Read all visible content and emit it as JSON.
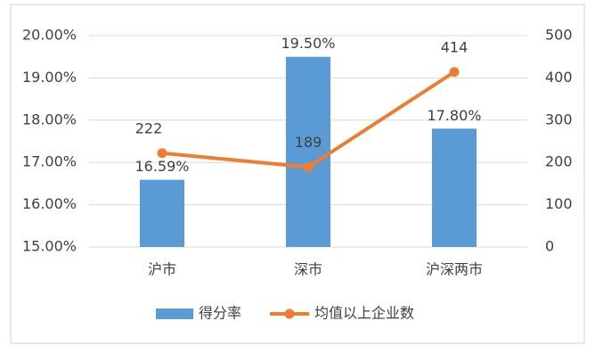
{
  "chart_data": {
    "type": "combo",
    "categories": [
      "沪市",
      "深市",
      "沪深两市"
    ],
    "series": [
      {
        "name": "得分率",
        "type": "bar",
        "color": "#5b9bd5",
        "values": [
          16.59,
          19.5,
          17.8
        ],
        "value_labels": [
          "16.59%",
          "19.50%",
          "17.80%"
        ]
      },
      {
        "name": "均值以上企业数",
        "type": "line",
        "axis": "y2",
        "color": "#ed7d31",
        "values": [
          222,
          189,
          414
        ]
      }
    ],
    "ylim": [
      15,
      20
    ],
    "yticks": [
      {
        "value": 15,
        "label": "15.00%"
      },
      {
        "value": 16,
        "label": "16.00%"
      },
      {
        "value": 17,
        "label": "17.00%"
      },
      {
        "value": 18,
        "label": "18.00%"
      },
      {
        "value": 19,
        "label": "19.00%"
      },
      {
        "value": 20,
        "label": "20.00%"
      }
    ],
    "y2lim": [
      0,
      500
    ],
    "y2ticks": [
      0,
      100,
      200,
      300,
      400,
      500
    ],
    "grid": true,
    "legend": "bottom"
  }
}
